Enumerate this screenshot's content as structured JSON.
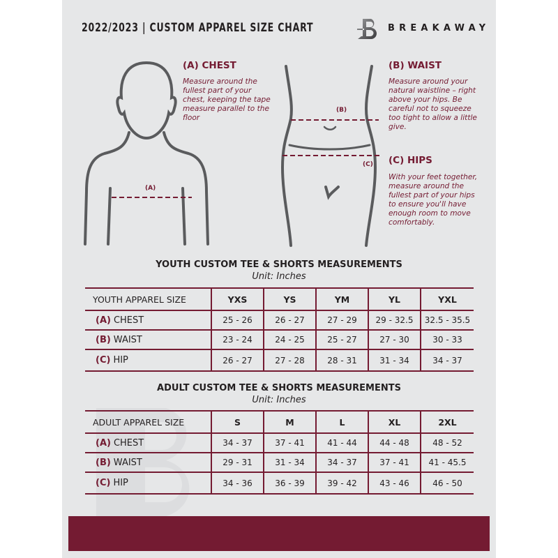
{
  "header": {
    "title": "2022/2023  |  CUSTOM APPAREL SIZE CHART",
    "brand": "BREAKAWAY"
  },
  "colors": {
    "accent": "#741b32",
    "background": "#e6e7e8",
    "text": "#231f20"
  },
  "sections": {
    "chest": {
      "heading": "(A) CHEST",
      "text": "Measure around the fullest part of your chest, keeping the tape measure parallel to the floor",
      "marker": "(A)"
    },
    "waist": {
      "heading": "(B) WAIST",
      "text": "Measure around your natural waistline – right above your hips. Be careful not to squeeze too tight to allow a little give.",
      "marker": "(B)"
    },
    "hips": {
      "heading": "(C) HIPS",
      "text": "With your feet together, measure around the fullest part of your hips to ensure you'll have enough room to move comfortably.",
      "marker": "(C)"
    }
  },
  "youth": {
    "title": "YOUTH CUSTOM TEE & SHORTS MEASUREMENTS",
    "unit": "Unit: Inches",
    "header": [
      "YOUTH APPAREL SIZE",
      "YXS",
      "YS",
      "YM",
      "YL",
      "YXL"
    ],
    "rows": [
      {
        "code": "(A)",
        "name": "CHEST",
        "values": [
          "25 - 26",
          "26 - 27",
          "27 - 29",
          "29 - 32.5",
          "32.5 - 35.5"
        ]
      },
      {
        "code": "(B)",
        "name": "WAIST",
        "values": [
          "23 - 24",
          "24 - 25",
          "25 - 27",
          "27 - 30",
          "30 - 33"
        ]
      },
      {
        "code": "(C)",
        "name": "HIP",
        "values": [
          "26 - 27",
          "27 - 28",
          "28 - 31",
          "31 - 34",
          "34 - 37"
        ]
      }
    ]
  },
  "adult": {
    "title": "ADULT CUSTOM TEE & SHORTS MEASUREMENTS",
    "unit": "Unit: Inches",
    "header": [
      "ADULT APPAREL SIZE",
      "S",
      "M",
      "L",
      "XL",
      "2XL"
    ],
    "rows": [
      {
        "code": "(A)",
        "name": "CHEST",
        "values": [
          "34 - 37",
          "37 - 41",
          "41 - 44",
          "44 - 48",
          "48 - 52"
        ]
      },
      {
        "code": "(B)",
        "name": "WAIST",
        "values": [
          "29 - 31",
          "31 - 34",
          "34 - 37",
          "37 - 41",
          "41 - 45.5"
        ]
      },
      {
        "code": "(C)",
        "name": "HIP",
        "values": [
          "34 - 36",
          "36 - 39",
          "39 - 42",
          "43 - 46",
          "46 - 50"
        ]
      }
    ]
  }
}
